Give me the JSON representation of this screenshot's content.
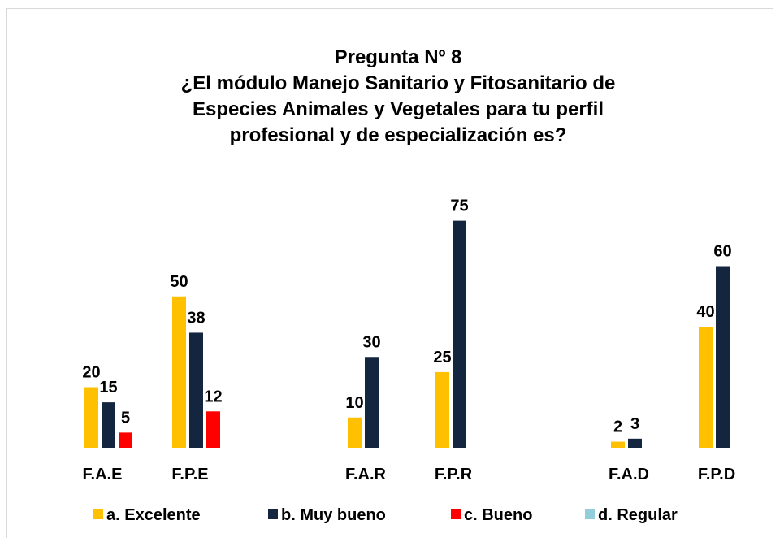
{
  "chart_data": {
    "type": "bar",
    "title": [
      "Pregunta Nº 8",
      "¿El módulo  Manejo Sanitario y Fitosanitario de",
      "Especies Animales y Vegetales para tu perfil",
      "profesional y de especialización es?"
    ],
    "categories": [
      "F.A.E",
      "F.P.E",
      null,
      "F.A.R",
      "F.P.R",
      null,
      "F.A.D",
      "F.P.D"
    ],
    "series": [
      {
        "name": "a. Excelente",
        "color": "#ffc000",
        "values": [
          20,
          50,
          null,
          10,
          25,
          null,
          2,
          40
        ]
      },
      {
        "name": "b. Muy bueno",
        "color": "#14253f",
        "values": [
          15,
          38,
          null,
          30,
          75,
          null,
          3,
          60
        ]
      },
      {
        "name": "c. Bueno",
        "color": "#ff0000",
        "values": [
          5,
          12,
          null,
          null,
          null,
          null,
          null,
          null
        ]
      },
      {
        "name": "d. Regular",
        "color": "#92cddc",
        "values": [
          null,
          null,
          null,
          null,
          null,
          null,
          null,
          null
        ]
      }
    ],
    "ylim": [
      0,
      80
    ],
    "legend": "bottom"
  }
}
